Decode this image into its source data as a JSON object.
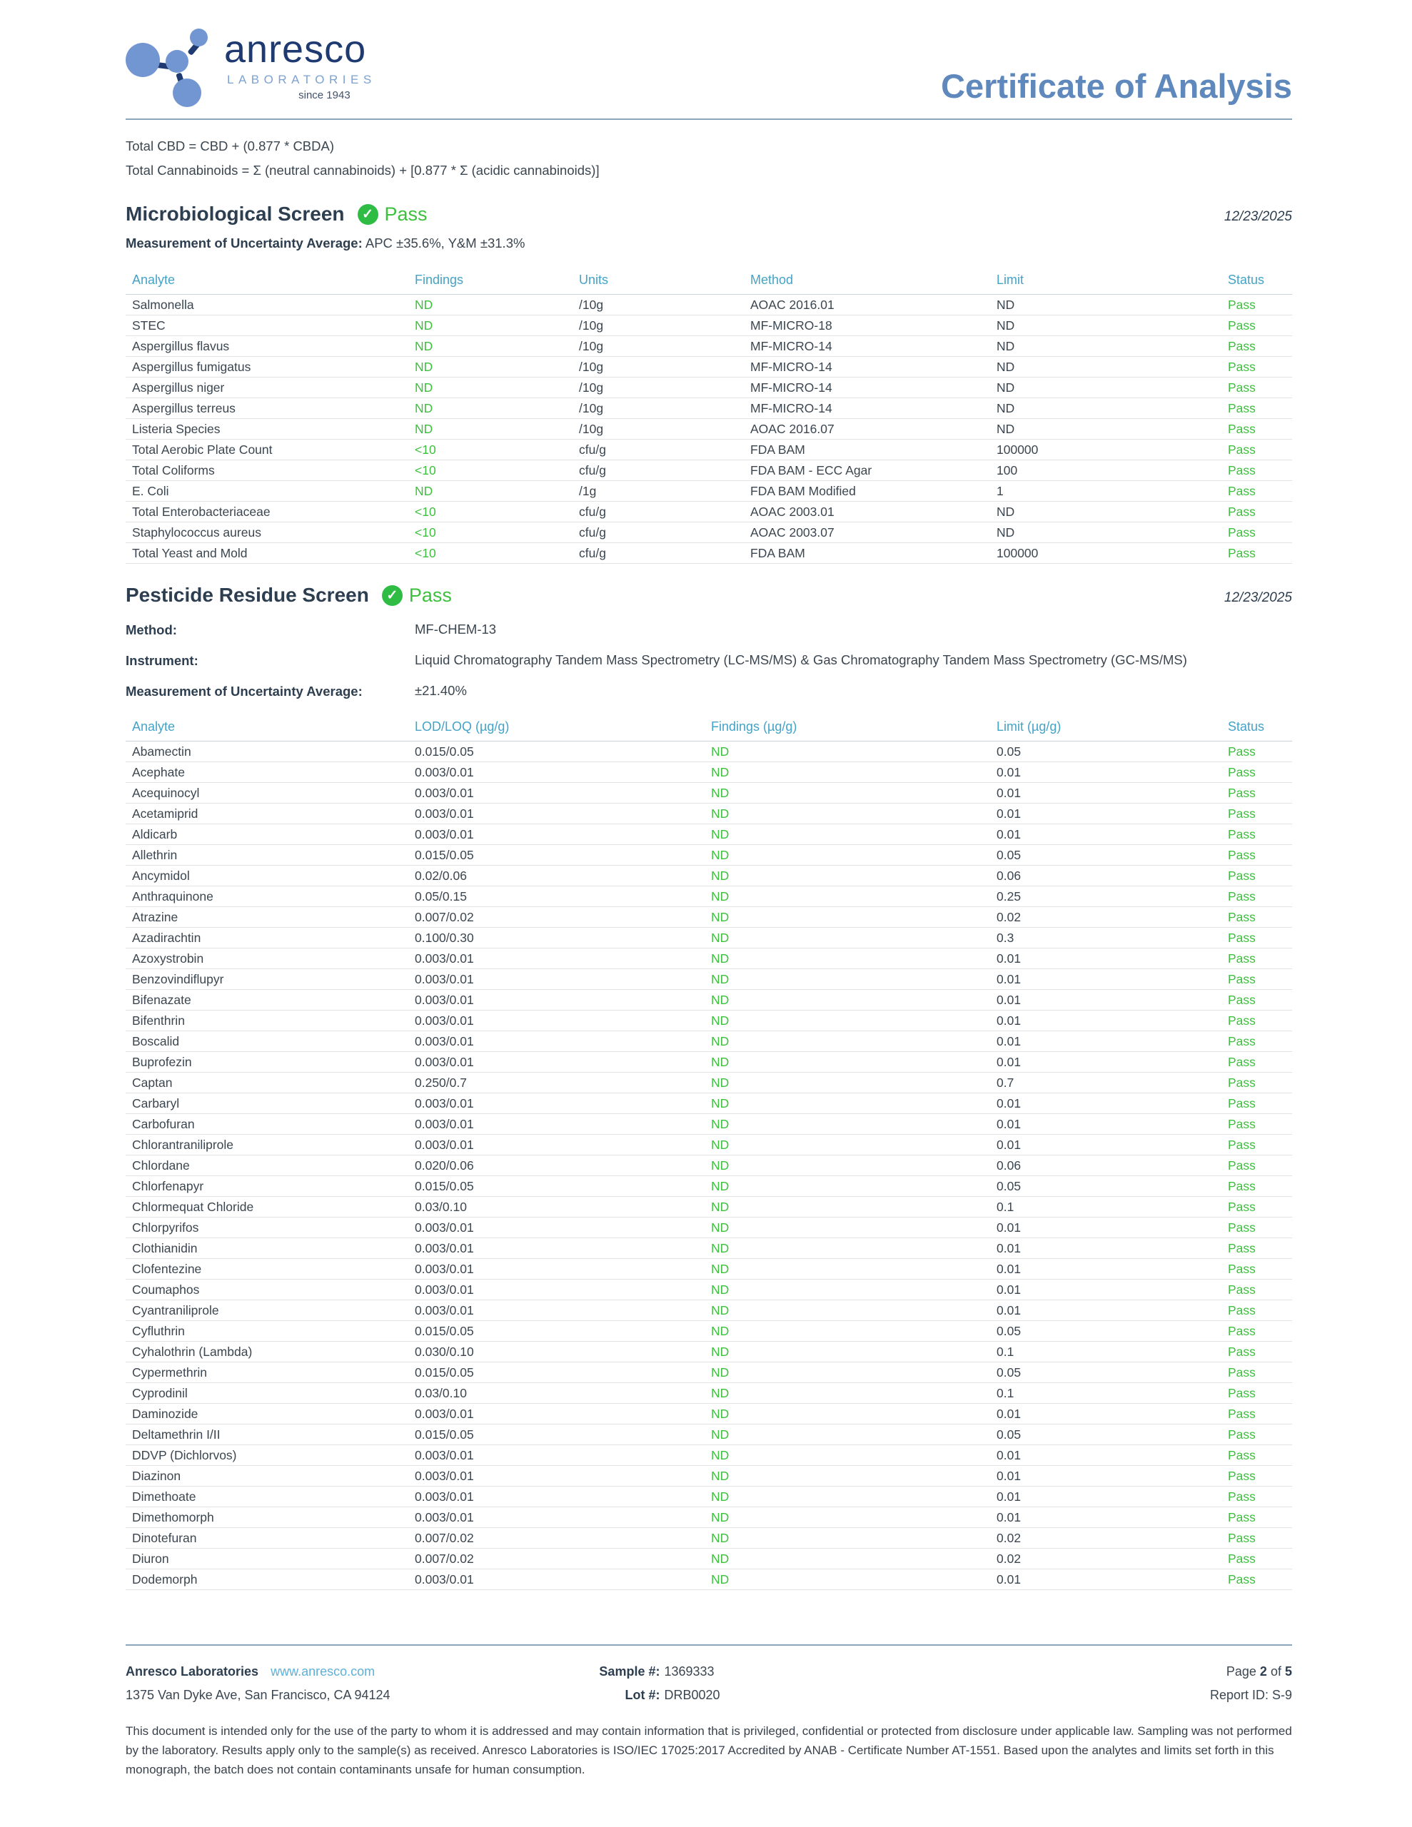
{
  "header": {
    "brand": "anresco",
    "brand_sub": "LABORATORIES",
    "brand_since": "since 1943",
    "title": "Certificate of Analysis"
  },
  "formulas": {
    "line1": "Total CBD = CBD + (0.877 * CBDA)",
    "line2": "Total Cannabinoids = Σ (neutral cannabinoids) + [0.877 * Σ (acidic cannabinoids)]"
  },
  "colors": {
    "accent_blue": "#5f88bd",
    "table_header_blue": "#44a3c7",
    "pass_green": "#3dc03d",
    "navy": "#1e3a70",
    "gold": "#e9ad2e"
  },
  "micro": {
    "title": "Microbiological Screen",
    "status": "Pass",
    "check_glyph": "✓",
    "date": "12/23/2025",
    "mou_label": "Measurement of Uncertainty Average:",
    "mou_value": "APC ±35.6%, Y&M ±31.3%",
    "columns": [
      "Analyte",
      "Findings",
      "Units",
      "Method",
      "Limit",
      "Status"
    ],
    "rows": [
      [
        "Salmonella",
        "ND",
        "/10g",
        "AOAC 2016.01",
        "ND",
        "Pass"
      ],
      [
        "STEC",
        "ND",
        "/10g",
        "MF-MICRO-18",
        "ND",
        "Pass"
      ],
      [
        "Aspergillus flavus",
        "ND",
        "/10g",
        "MF-MICRO-14",
        "ND",
        "Pass"
      ],
      [
        "Aspergillus fumigatus",
        "ND",
        "/10g",
        "MF-MICRO-14",
        "ND",
        "Pass"
      ],
      [
        "Aspergillus niger",
        "ND",
        "/10g",
        "MF-MICRO-14",
        "ND",
        "Pass"
      ],
      [
        "Aspergillus terreus",
        "ND",
        "/10g",
        "MF-MICRO-14",
        "ND",
        "Pass"
      ],
      [
        "Listeria Species",
        "ND",
        "/10g",
        "AOAC 2016.07",
        "ND",
        "Pass"
      ],
      [
        "Total Aerobic Plate Count",
        "<10",
        "cfu/g",
        "FDA BAM",
        "100000",
        "Pass"
      ],
      [
        "Total Coliforms",
        "<10",
        "cfu/g",
        "FDA BAM - ECC Agar",
        "100",
        "Pass"
      ],
      [
        "E. Coli",
        "ND",
        "/1g",
        "FDA BAM Modified",
        "1",
        "Pass"
      ],
      [
        "Total Enterobacteriaceae",
        "<10",
        "cfu/g",
        "AOAC 2003.01",
        "ND",
        "Pass"
      ],
      [
        "Staphylococcus aureus",
        "<10",
        "cfu/g",
        "AOAC 2003.07",
        "ND",
        "Pass"
      ],
      [
        "Total Yeast and Mold",
        "<10",
        "cfu/g",
        "FDA BAM",
        "100000",
        "Pass"
      ]
    ]
  },
  "pesticide": {
    "title": "Pesticide Residue Screen",
    "status": "Pass",
    "check_glyph": "✓",
    "date": "12/23/2025",
    "method_label": "Method:",
    "method_value": "MF-CHEM-13",
    "instrument_label": "Instrument:",
    "instrument_value": "Liquid Chromatography Tandem Mass Spectrometry (LC-MS/MS) & Gas Chromatography Tandem Mass Spectrometry (GC-MS/MS)",
    "mou_label": "Measurement of Uncertainty Average:",
    "mou_value": "±21.40%",
    "columns": [
      "Analyte",
      "LOD/LOQ (µg/g)",
      "Findings (µg/g)",
      "Limit (µg/g)",
      "Status"
    ],
    "rows": [
      [
        "Abamectin",
        "0.015/0.05",
        "ND",
        "0.05",
        "Pass"
      ],
      [
        "Acephate",
        "0.003/0.01",
        "ND",
        "0.01",
        "Pass"
      ],
      [
        "Acequinocyl",
        "0.003/0.01",
        "ND",
        "0.01",
        "Pass"
      ],
      [
        "Acetamiprid",
        "0.003/0.01",
        "ND",
        "0.01",
        "Pass"
      ],
      [
        "Aldicarb",
        "0.003/0.01",
        "ND",
        "0.01",
        "Pass"
      ],
      [
        "Allethrin",
        "0.015/0.05",
        "ND",
        "0.05",
        "Pass"
      ],
      [
        "Ancymidol",
        "0.02/0.06",
        "ND",
        "0.06",
        "Pass"
      ],
      [
        "Anthraquinone",
        "0.05/0.15",
        "ND",
        "0.25",
        "Pass"
      ],
      [
        "Atrazine",
        "0.007/0.02",
        "ND",
        "0.02",
        "Pass"
      ],
      [
        "Azadirachtin",
        "0.100/0.30",
        "ND",
        "0.3",
        "Pass"
      ],
      [
        "Azoxystrobin",
        "0.003/0.01",
        "ND",
        "0.01",
        "Pass"
      ],
      [
        "Benzovindiflupyr",
        "0.003/0.01",
        "ND",
        "0.01",
        "Pass"
      ],
      [
        "Bifenazate",
        "0.003/0.01",
        "ND",
        "0.01",
        "Pass"
      ],
      [
        "Bifenthrin",
        "0.003/0.01",
        "ND",
        "0.01",
        "Pass"
      ],
      [
        "Boscalid",
        "0.003/0.01",
        "ND",
        "0.01",
        "Pass"
      ],
      [
        "Buprofezin",
        "0.003/0.01",
        "ND",
        "0.01",
        "Pass"
      ],
      [
        "Captan",
        "0.250/0.7",
        "ND",
        "0.7",
        "Pass"
      ],
      [
        "Carbaryl",
        "0.003/0.01",
        "ND",
        "0.01",
        "Pass"
      ],
      [
        "Carbofuran",
        "0.003/0.01",
        "ND",
        "0.01",
        "Pass"
      ],
      [
        "Chlorantraniliprole",
        "0.003/0.01",
        "ND",
        "0.01",
        "Pass"
      ],
      [
        "Chlordane",
        "0.020/0.06",
        "ND",
        "0.06",
        "Pass"
      ],
      [
        "Chlorfenapyr",
        "0.015/0.05",
        "ND",
        "0.05",
        "Pass"
      ],
      [
        "Chlormequat Chloride",
        "0.03/0.10",
        "ND",
        "0.1",
        "Pass"
      ],
      [
        "Chlorpyrifos",
        "0.003/0.01",
        "ND",
        "0.01",
        "Pass"
      ],
      [
        "Clothianidin",
        "0.003/0.01",
        "ND",
        "0.01",
        "Pass"
      ],
      [
        "Clofentezine",
        "0.003/0.01",
        "ND",
        "0.01",
        "Pass"
      ],
      [
        "Coumaphos",
        "0.003/0.01",
        "ND",
        "0.01",
        "Pass"
      ],
      [
        "Cyantraniliprole",
        "0.003/0.01",
        "ND",
        "0.01",
        "Pass"
      ],
      [
        "Cyfluthrin",
        "0.015/0.05",
        "ND",
        "0.05",
        "Pass"
      ],
      [
        "Cyhalothrin (Lambda)",
        "0.030/0.10",
        "ND",
        "0.1",
        "Pass"
      ],
      [
        "Cypermethrin",
        "0.015/0.05",
        "ND",
        "0.05",
        "Pass"
      ],
      [
        "Cyprodinil",
        "0.03/0.10",
        "ND",
        "0.1",
        "Pass"
      ],
      [
        "Daminozide",
        "0.003/0.01",
        "ND",
        "0.01",
        "Pass"
      ],
      [
        "Deltamethrin I/II",
        "0.015/0.05",
        "ND",
        "0.05",
        "Pass"
      ],
      [
        "DDVP (Dichlorvos)",
        "0.003/0.01",
        "ND",
        "0.01",
        "Pass"
      ],
      [
        "Diazinon",
        "0.003/0.01",
        "ND",
        "0.01",
        "Pass"
      ],
      [
        "Dimethoate",
        "0.003/0.01",
        "ND",
        "0.01",
        "Pass"
      ],
      [
        "Dimethomorph",
        "0.003/0.01",
        "ND",
        "0.01",
        "Pass"
      ],
      [
        "Dinotefuran",
        "0.007/0.02",
        "ND",
        "0.02",
        "Pass"
      ],
      [
        "Diuron",
        "0.007/0.02",
        "ND",
        "0.02",
        "Pass"
      ],
      [
        "Dodemorph",
        "0.003/0.01",
        "ND",
        "0.01",
        "Pass"
      ]
    ]
  },
  "footer": {
    "company": "Anresco Laboratories",
    "website": "www.anresco.com",
    "address": "1375 Van Dyke Ave, San Francisco, CA 94124",
    "sample_label": "Sample #:",
    "sample_value": "1369333",
    "lot_label": "Lot #:",
    "lot_value": "DRB0020",
    "page_label": "Page",
    "page_number": "2",
    "page_of": "of",
    "page_total": "5",
    "report_id": "Report ID: S-9",
    "disclaimer": "This document is intended only for the use of the party to whom it is addressed and may contain information that is privileged, confidential or protected from disclosure under applicable law. Sampling was not performed by the laboratory. Results apply only to the sample(s) as received. Anresco Laboratories is ISO/IEC 17025:2017 Accredited by ANAB - Certificate Number AT-1551. Based upon the analytes and limits set forth in this monograph, the batch does not contain contaminants unsafe for human consumption."
  }
}
